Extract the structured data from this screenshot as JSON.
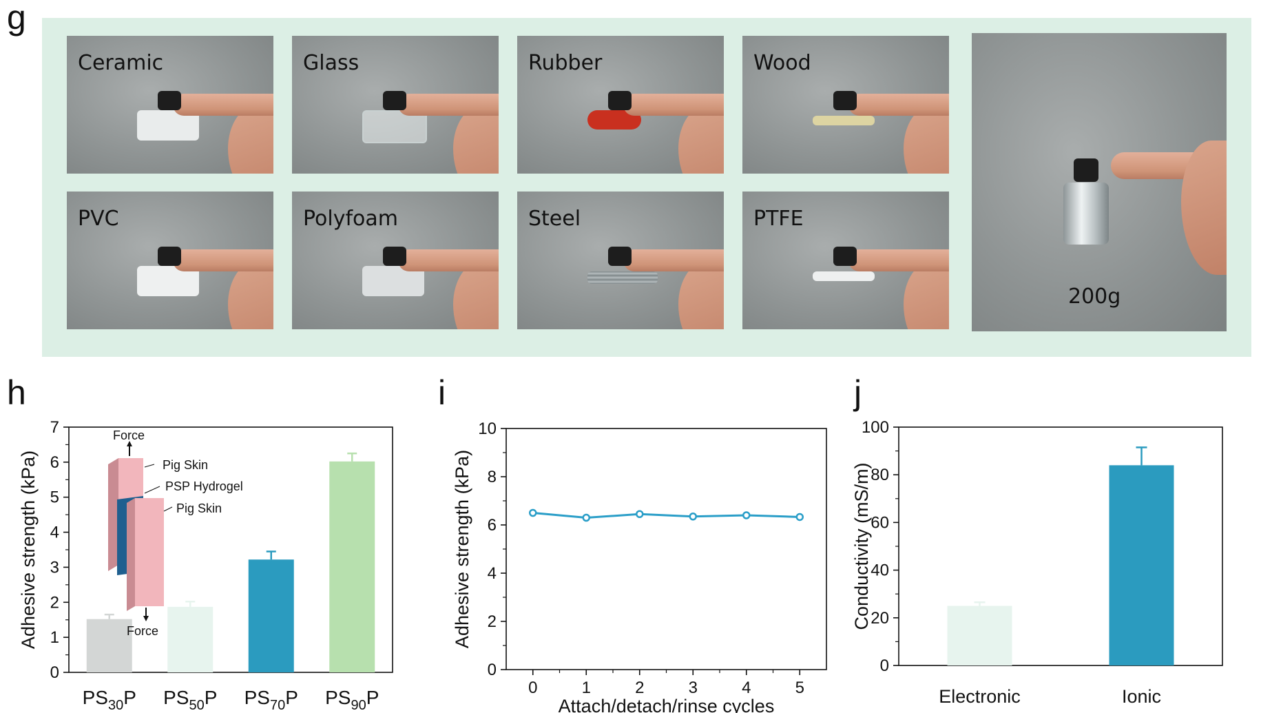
{
  "panels": {
    "g": "g",
    "h": "h",
    "i": "i",
    "j": "j"
  },
  "photos": [
    {
      "label": "Ceramic",
      "sample_color": "#e9ecec"
    },
    {
      "label": "Glass",
      "sample_color": "#d8e0e0"
    },
    {
      "label": "Rubber",
      "sample_color": "#c9301f"
    },
    {
      "label": "Wood",
      "sample_color": "#ddd4a2"
    },
    {
      "label": "PVC",
      "sample_color": "#eef0f0"
    },
    {
      "label": "Polyfoam",
      "sample_color": "#dcdfe0"
    },
    {
      "label": "Steel",
      "sample_color": "#8a9193"
    },
    {
      "label": "PTFE",
      "sample_color": "#eef0f0"
    }
  ],
  "weight_photo": {
    "label": "200g"
  },
  "inset": {
    "force_top": "Force",
    "force_bottom": "Force",
    "layer_top": "Pig Skin",
    "layer_mid": "PSP Hydrogel",
    "layer_bottom": "Pig Skin",
    "skin_color": "#f2b6bc",
    "hydrogel_color": "#1f5f8f"
  },
  "chart_data": [
    {
      "id": "h",
      "type": "bar",
      "categories": [
        {
          "base": "PS",
          "sub": "30",
          "suffix": "P"
        },
        {
          "base": "PS",
          "sub": "50",
          "suffix": "P"
        },
        {
          "base": "PS",
          "sub": "70",
          "suffix": "P"
        },
        {
          "base": "PS",
          "sub": "90",
          "suffix": "P"
        }
      ],
      "values": [
        1.52,
        1.87,
        3.22,
        6.02
      ],
      "errors": [
        0.13,
        0.15,
        0.23,
        0.23
      ],
      "colors": [
        "#d3d6d5",
        "#e7f4ee",
        "#2b9bbf",
        "#b7e0ae"
      ],
      "ylabel": "Adhesive strength (kPa)",
      "xlabel": "",
      "ylim": [
        0,
        7
      ],
      "yticks": [
        0,
        1,
        2,
        3,
        4,
        5,
        6,
        7
      ]
    },
    {
      "id": "i",
      "type": "line",
      "x": [
        0,
        1,
        2,
        3,
        4,
        5
      ],
      "y": [
        6.5,
        6.3,
        6.45,
        6.35,
        6.4,
        6.33
      ],
      "color": "#2a9ec8",
      "ylabel": "Adhesive strength (kPa)",
      "xlabel": "Attach/detach/rinse cycles",
      "xlim": [
        -0.5,
        5.5
      ],
      "ylim": [
        0,
        10
      ],
      "xticks": [
        0,
        1,
        2,
        3,
        4,
        5
      ],
      "yticks": [
        0,
        2,
        4,
        6,
        8,
        10
      ]
    },
    {
      "id": "j",
      "type": "bar",
      "categories": [
        "Electronic",
        "Ionic"
      ],
      "values": [
        25,
        84
      ],
      "errors": [
        1.5,
        7.5
      ],
      "colors": [
        "#e7f4ee",
        "#2b9bbf"
      ],
      "ylabel": "Conductivity (mS/m)",
      "xlabel": "",
      "ylim": [
        0,
        100
      ],
      "yticks": [
        0,
        20,
        40,
        60,
        80,
        100
      ]
    }
  ]
}
